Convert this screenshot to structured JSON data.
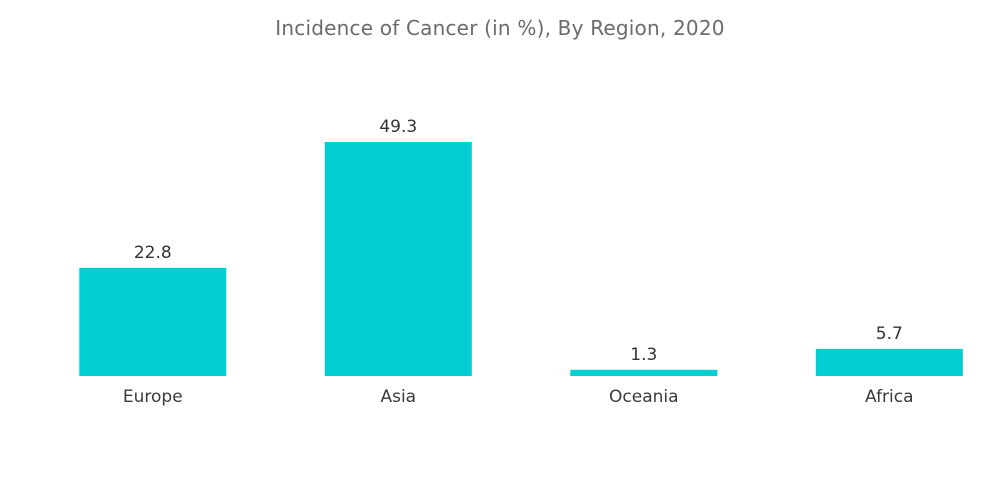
{
  "chart_data": {
    "type": "bar",
    "title": "Incidence of Cancer (in %), By Region, 2020",
    "categories": [
      "Europe",
      "Asia",
      "Oceania",
      "Africa"
    ],
    "values": [
      22.8,
      49.3,
      1.3,
      5.7
    ],
    "value_labels": [
      "22.8",
      "49.3",
      "1.3",
      "5.7"
    ],
    "xlabel": "",
    "ylabel": "",
    "grid": false,
    "legend": "none",
    "colors": {
      "bar": "#00ced1",
      "title": "#6b6b6b",
      "text": "#333333"
    }
  }
}
